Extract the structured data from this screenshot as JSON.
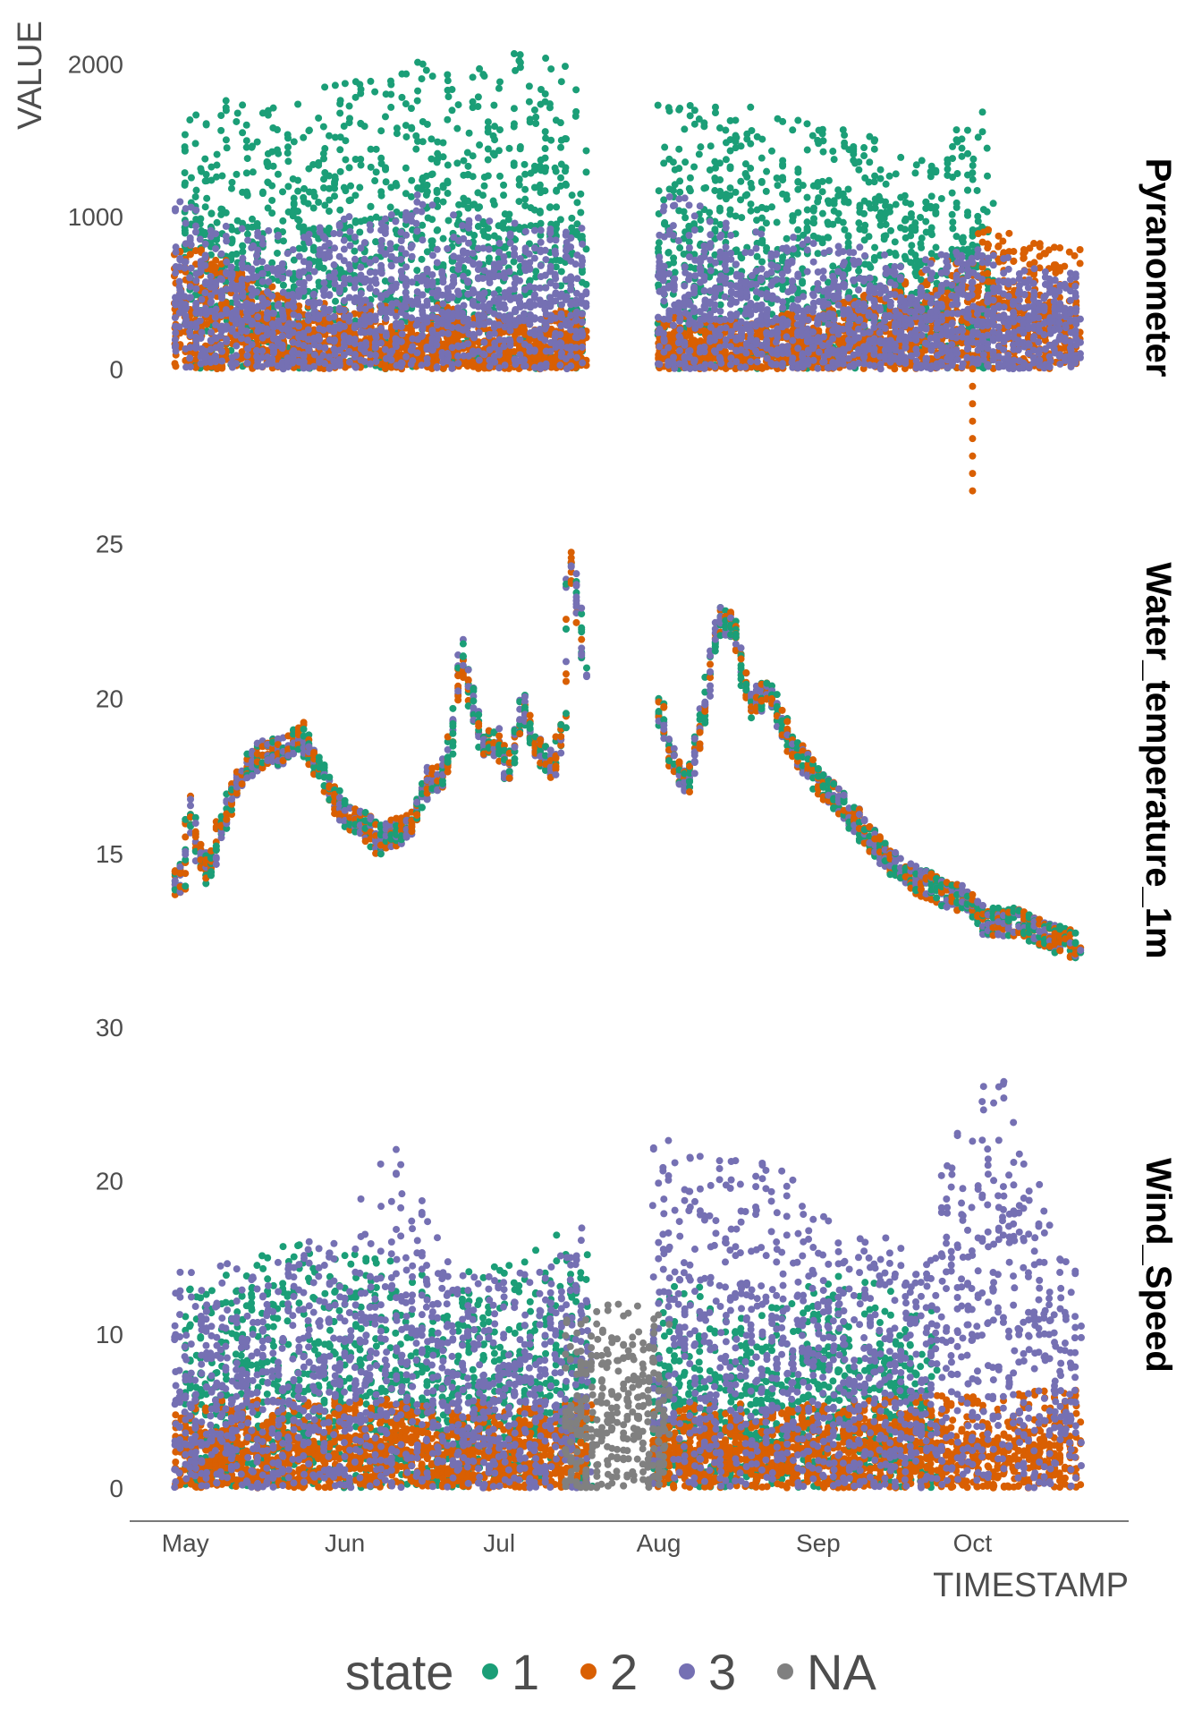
{
  "chart_data": {
    "type": "scatter",
    "xlabel": "TIMESTAMP",
    "ylabel": "VALUE",
    "x_ticks": [
      "May",
      "Jun",
      "Jul",
      "Aug",
      "Sep",
      "Oct"
    ],
    "x_range": [
      "2019-04-28",
      "2019-10-23"
    ],
    "legend": {
      "title": "state",
      "position": "bottom",
      "entries": [
        {
          "label": "1",
          "color": "#1b9e77"
        },
        {
          "label": "2",
          "color": "#d95f02"
        },
        {
          "label": "3",
          "color": "#7570b3"
        },
        {
          "label": "NA",
          "color": "#808080"
        }
      ]
    },
    "grid": false,
    "gap_in_data": [
      "2019-07-18",
      "2019-08-01"
    ],
    "panels": [
      {
        "name": "Pyranometer",
        "ylim": [
          -820,
          2150
        ],
        "y_ticks": [
          0,
          1000,
          2000
        ],
        "series": [
          {
            "state": "1",
            "x": [
              "2019-05-05",
              "2019-05-15",
              "2019-05-25",
              "2019-06-05",
              "2019-06-15",
              "2019-06-25",
              "2019-07-05",
              "2019-07-15",
              "2019-08-05",
              "2019-08-15",
              "2019-08-25",
              "2019-09-05",
              "2019-09-15",
              "2019-09-25",
              "2019-10-01"
            ],
            "y_max": [
              1850,
              1700,
              1800,
              1950,
              2050,
              2000,
              2100,
              2000,
              1750,
              1800,
              1650,
              1600,
              1500,
              1350,
              1750
            ]
          },
          {
            "state": "2",
            "x": [
              "2019-05-01",
              "2019-05-10",
              "2019-05-20",
              "2019-06-01",
              "2019-06-15",
              "2019-07-01",
              "2019-07-15",
              "2019-08-05",
              "2019-08-20",
              "2019-09-05",
              "2019-09-20",
              "2019-10-01",
              "2019-10-10",
              "2019-10-20"
            ],
            "y_max": [
              850,
              700,
              500,
              400,
              450,
              350,
              400,
              350,
              300,
              450,
              600,
              950,
              900,
              800
            ]
          },
          {
            "state": "3",
            "x": [
              "2019-05-01",
              "2019-05-15",
              "2019-06-01",
              "2019-06-15",
              "2019-07-01",
              "2019-07-15",
              "2019-08-05",
              "2019-08-20",
              "2019-09-05",
              "2019-09-20",
              "2019-10-01",
              "2019-10-15",
              "2019-10-22"
            ],
            "y_max": [
              1100,
              900,
              1000,
              1150,
              1000,
              900,
              1150,
              900,
              850,
              700,
              800,
              700,
              650
            ]
          }
        ],
        "min_outlier": {
          "x": "2019-10-01",
          "y": -800,
          "state": "2"
        }
      },
      {
        "name": "Water_temperature_1m",
        "ylim": [
          10.5,
          25.5
        ],
        "y_ticks": [
          15,
          20,
          25
        ],
        "series": [
          {
            "state": "all",
            "x": [
              "2019-04-29",
              "2019-05-01",
              "2019-05-02",
              "2019-05-04",
              "2019-05-06",
              "2019-05-08",
              "2019-05-12",
              "2019-05-16",
              "2019-05-20",
              "2019-05-24",
              "2019-05-28",
              "2019-06-01",
              "2019-06-05",
              "2019-06-08",
              "2019-06-10",
              "2019-06-14",
              "2019-06-18",
              "2019-06-20",
              "2019-06-22",
              "2019-06-24",
              "2019-06-28",
              "2019-07-01",
              "2019-07-03",
              "2019-07-06",
              "2019-07-08",
              "2019-07-12",
              "2019-07-14",
              "2019-07-15",
              "2019-07-17",
              "2019-07-18",
              "2019-08-02",
              "2019-08-04",
              "2019-08-07",
              "2019-08-10",
              "2019-08-13",
              "2019-08-16",
              "2019-08-19",
              "2019-08-23",
              "2019-08-27",
              "2019-09-01",
              "2019-09-05",
              "2019-09-10",
              "2019-09-15",
              "2019-09-20",
              "2019-09-25",
              "2019-09-30",
              "2019-10-04",
              "2019-10-10",
              "2019-10-15",
              "2019-10-22"
            ],
            "y": [
              14.0,
              14.3,
              16.5,
              15.0,
              14.2,
              15.8,
              17.5,
              18.2,
              18.3,
              18.8,
              17.5,
              16.3,
              16.0,
              15.4,
              15.6,
              15.8,
              17.5,
              17.3,
              18.5,
              21.5,
              18.5,
              18.6,
              17.5,
              19.8,
              18.5,
              17.8,
              19.5,
              24.8,
              22.5,
              21.0,
              19.5,
              18.0,
              17.2,
              19.5,
              22.5,
              22.3,
              19.8,
              20.2,
              18.5,
              17.4,
              16.8,
              15.8,
              14.8,
              14.2,
              13.8,
              13.5,
              12.8,
              12.8,
              12.4,
              12.0
            ]
          }
        ]
      },
      {
        "name": "Wind_Speed",
        "ylim": [
          -1,
          30
        ],
        "y_ticks": [
          0,
          10,
          20,
          30
        ],
        "series": [
          {
            "state": "1",
            "x": [
              "2019-05-05",
              "2019-05-20",
              "2019-06-10",
              "2019-06-20",
              "2019-07-05",
              "2019-07-15",
              "2019-08-10",
              "2019-08-20",
              "2019-09-01",
              "2019-09-20"
            ],
            "y_max": [
              13,
              16,
              15,
              14,
              15,
              17,
              13,
              11,
              14,
              13
            ]
          },
          {
            "state": "2",
            "x": [
              "2019-05-01",
              "2019-06-01",
              "2019-07-01",
              "2019-08-01",
              "2019-09-01",
              "2019-10-01",
              "2019-10-22"
            ],
            "y_max": [
              6,
              5.8,
              5.8,
              5.5,
              5.5,
              6.2,
              6.5
            ]
          },
          {
            "state": "3",
            "x": [
              "2019-05-03",
              "2019-05-15",
              "2019-06-01",
              "2019-06-11",
              "2019-06-20",
              "2019-07-05",
              "2019-07-15",
              "2019-08-03",
              "2019-08-28",
              "2019-09-10",
              "2019-09-20",
              "2019-10-05",
              "2019-10-20"
            ],
            "y_max": [
              15,
              15,
              17,
              23,
              16,
              14,
              16,
              23,
              21,
              17,
              16,
              29,
              15
            ]
          },
          {
            "state": "NA",
            "x": [
              "2019-07-18",
              "2019-07-22",
              "2019-07-26",
              "2019-07-30"
            ],
            "y_max": [
              11,
              12,
              12,
              12
            ]
          }
        ]
      }
    ]
  }
}
